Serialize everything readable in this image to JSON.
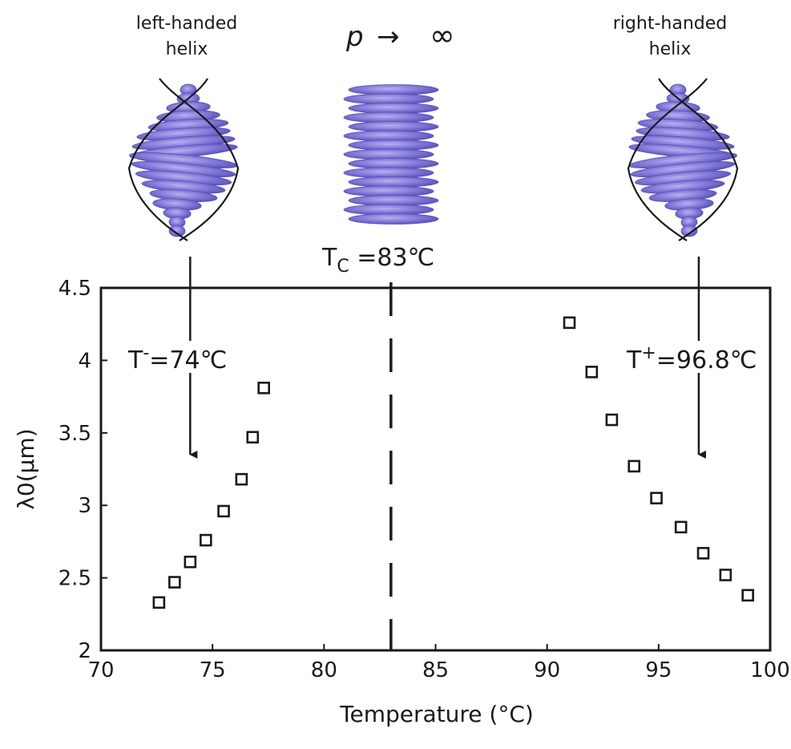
{
  "annotations": {
    "left_helix": [
      "left-handed",
      "helix"
    ],
    "right_helix": [
      "right-handed",
      "helix"
    ],
    "pitch_p": "p",
    "pitch_arrow": "→",
    "pitch_inf": "∞",
    "tc_main": "T",
    "tc_sub": "C",
    "tc_value": " =83℃",
    "tminus_main": "T",
    "tminus_sup": "-",
    "tminus_value": "=74℃",
    "tplus_main": "T",
    "tplus_sup": "+",
    "tplus_value": "=96.8℃"
  },
  "colors": {
    "ellipsoid": "#7f76d6",
    "ellipsoid_dark": "#5a52b8",
    "axis": "#1a1a1a"
  },
  "chart_data": {
    "type": "scatter",
    "title": "",
    "xlabel": "Temperature (°C)",
    "ylabel": "λ0(μm)",
    "xlim": [
      70,
      100
    ],
    "ylim": [
      2,
      4.5
    ],
    "xticks": [
      "70",
      "75",
      "80",
      "85",
      "90",
      "95",
      "100"
    ],
    "yticks": [
      "2",
      "2.5",
      "3",
      "3.5",
      "4",
      "4.5"
    ],
    "grid": false,
    "marker": "open-square",
    "series": [
      {
        "x": [
          72.6,
          73.3,
          74.0,
          74.7,
          75.5,
          76.3,
          76.8,
          77.3
        ],
        "y": [
          2.33,
          2.47,
          2.61,
          2.76,
          2.96,
          3.18,
          3.47,
          3.81
        ]
      },
      {
        "x": [
          91.0,
          92.0,
          92.9,
          93.9,
          94.9,
          96.0,
          97.0,
          98.0,
          99.0
        ],
        "y": [
          4.26,
          3.92,
          3.59,
          3.27,
          3.05,
          2.85,
          2.67,
          2.52,
          2.38
        ]
      }
    ],
    "reference_lines": [
      {
        "axis": "x",
        "value": 83,
        "style": "dashed"
      }
    ],
    "arrows": [
      {
        "x": 74.0,
        "from": "top",
        "to_y": 3.35
      },
      {
        "x": 96.8,
        "from": "top",
        "to_y": 3.35
      }
    ]
  }
}
